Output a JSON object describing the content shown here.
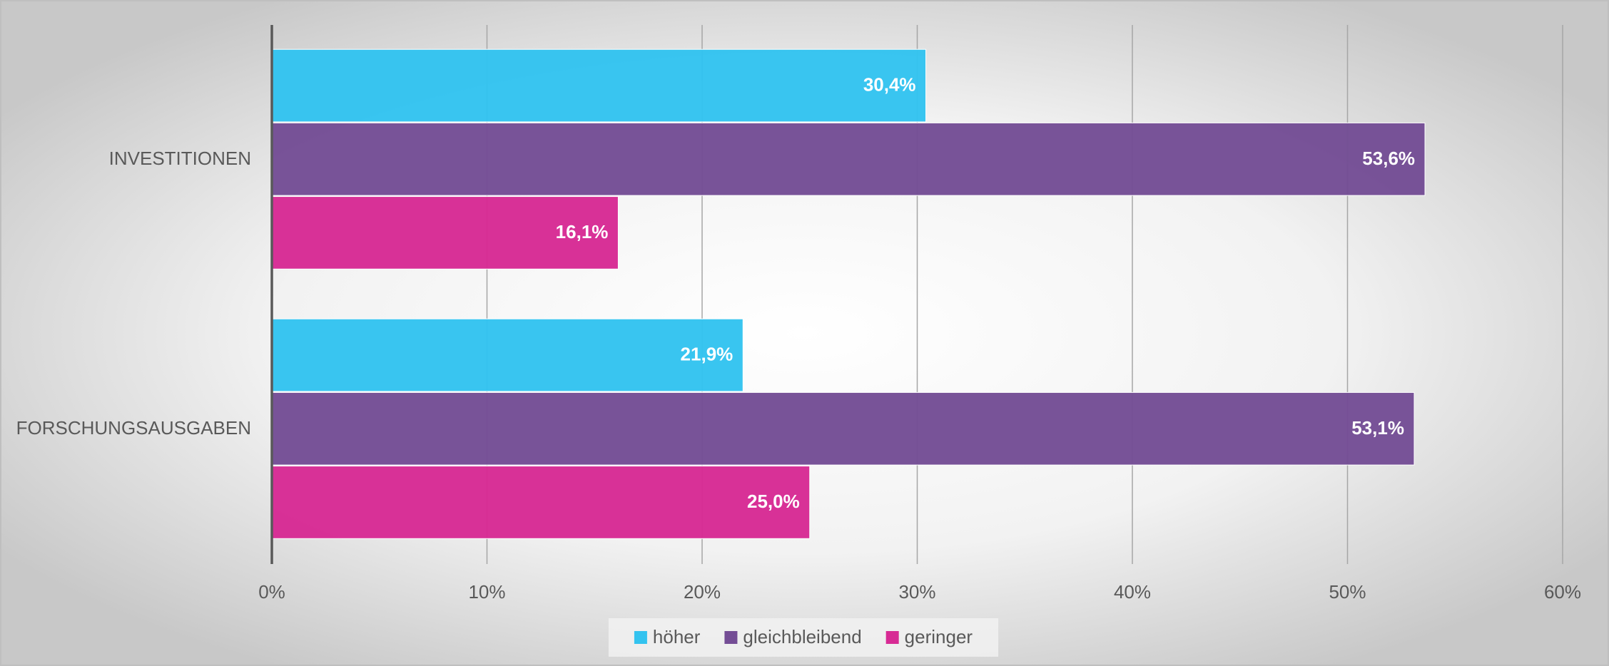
{
  "chart_data": {
    "type": "bar",
    "orientation": "horizontal",
    "categories": [
      "INVESTITIONEN",
      "FORSCHUNGSAUSGABEN"
    ],
    "series": [
      {
        "name": "höher",
        "color": "#33c3ef",
        "values": [
          30.4,
          21.9
        ],
        "value_labels": [
          "30,4%",
          "21,9%"
        ]
      },
      {
        "name": "gleichbleibend",
        "color": "#744d95",
        "values": [
          53.6,
          53.1
        ],
        "value_labels": [
          "53,6%",
          "53,1%"
        ]
      },
      {
        "name": "geringer",
        "color": "#d72a94",
        "values": [
          16.1,
          25.0
        ],
        "value_labels": [
          "16,1%",
          "25,0%"
        ]
      }
    ],
    "xlim": [
      0,
      60
    ],
    "xticks": [
      {
        "value": 0,
        "label": "0%"
      },
      {
        "value": 10,
        "label": "10%"
      },
      {
        "value": 20,
        "label": "20%"
      },
      {
        "value": 30,
        "label": "30%"
      },
      {
        "value": 40,
        "label": "40%"
      },
      {
        "value": 50,
        "label": "50%"
      },
      {
        "value": 60,
        "label": "60%"
      }
    ],
    "grid": true,
    "legend": "bottom"
  }
}
